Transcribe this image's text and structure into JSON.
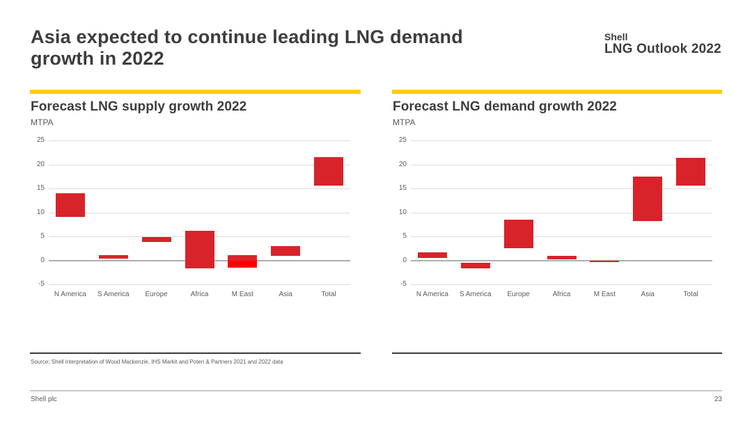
{
  "page": {
    "title_line1": "Asia expected to continue leading LNG demand",
    "title_line2": "growth in 2022",
    "logo": {
      "line1": "Shell",
      "line2": "LNG Outlook 2022"
    },
    "source": "Source: Shell interpretation of Wood Mackenzie, IHS Markit and Poten & Partners 2021 and 2022 data",
    "footer": {
      "company": "Shell plc",
      "page_number": "23"
    }
  },
  "colors": {
    "bar_red": "#d8232a",
    "bar_bright_red": "#ff0000",
    "accent_yellow": "#fbce07",
    "heading_gray": "#3d3d3d",
    "label_gray": "#595959",
    "gridline_gray": "#dcdcdc",
    "zero_line_gray": "#aeaeae"
  },
  "chart_data": [
    {
      "type": "bar",
      "subtype": "floating-range-bars",
      "title": "Forecast LNG supply growth 2022",
      "ylabel": "MTPA",
      "categories": [
        "N America",
        "S America",
        "Europe",
        "Africa",
        "M East",
        "Asia",
        "Total"
      ],
      "series": [
        {
          "name": "Forecast supply growth range (MTPA)",
          "ranges": [
            [
              9.0,
              14.0
            ],
            [
              0.3,
              1.1
            ],
            [
              3.9,
              4.8
            ],
            [
              -1.6,
              6.2
            ],
            [
              -1.5,
              1.1
            ],
            [
              1.0,
              3.0
            ],
            [
              15.6,
              21.5
            ]
          ]
        }
      ],
      "bright_segments": [
        {
          "category": "M East",
          "category_index": 4,
          "range": [
            -1.5,
            0.0
          ]
        }
      ],
      "ylim": [
        -5,
        25
      ],
      "yticks": [
        25,
        20,
        15,
        10,
        5,
        0,
        -5
      ],
      "grid": true,
      "legend": false
    },
    {
      "type": "bar",
      "subtype": "floating-range-bars",
      "title": "Forecast LNG demand growth 2022",
      "ylabel": "MTPA",
      "categories": [
        "N America",
        "S America",
        "Europe",
        "Africa",
        "M East",
        "Asia",
        "Total"
      ],
      "series": [
        {
          "name": "Forecast demand growth range (MTPA)",
          "ranges": [
            [
              0.5,
              1.7
            ],
            [
              -1.6,
              -0.5
            ],
            [
              2.6,
              8.5
            ],
            [
              0.2,
              1.0
            ],
            [
              -0.4,
              0.0
            ],
            [
              8.2,
              17.4
            ],
            [
              15.6,
              21.4
            ]
          ]
        }
      ],
      "bright_segments": [],
      "ylim": [
        -5,
        25
      ],
      "yticks": [
        25,
        20,
        15,
        10,
        5,
        0,
        -5
      ],
      "grid": true,
      "legend": false
    }
  ]
}
